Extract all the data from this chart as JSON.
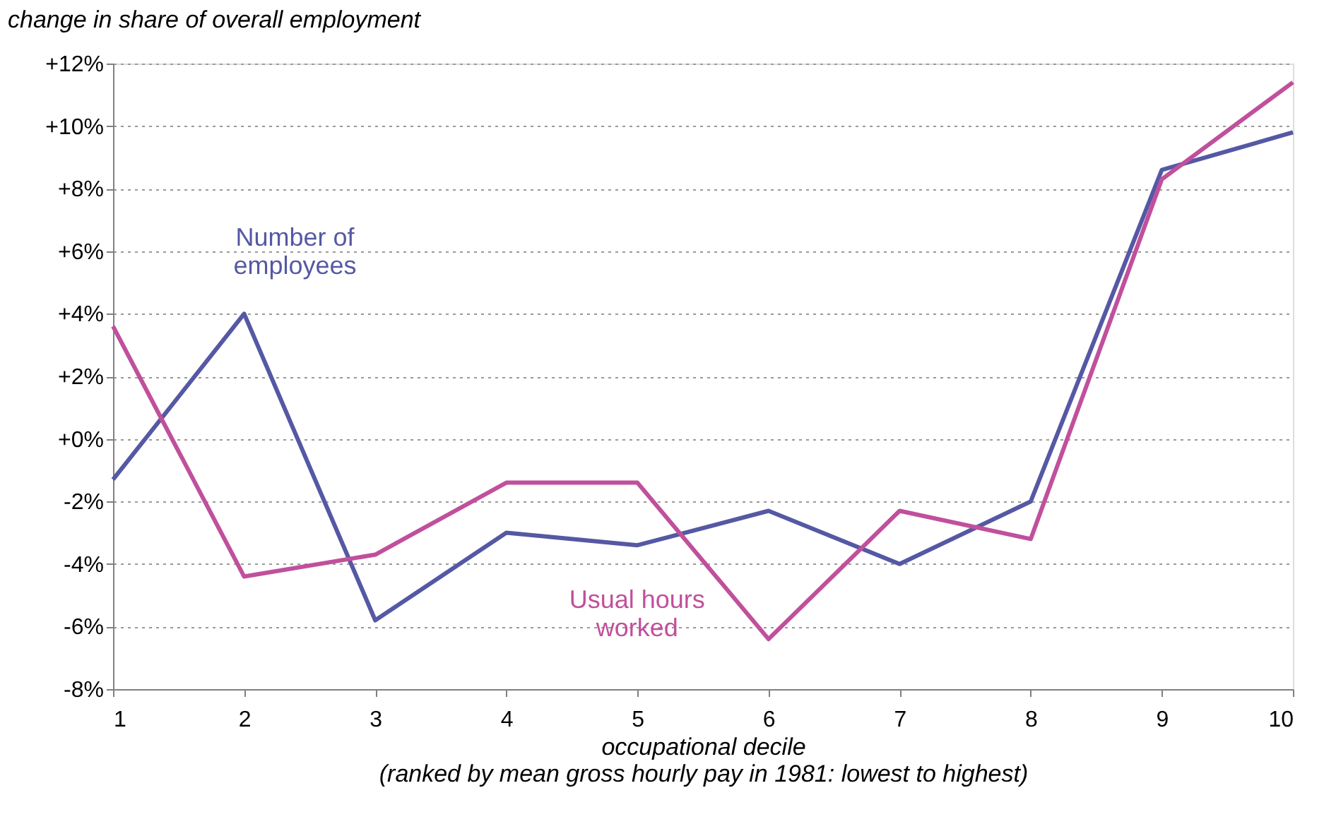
{
  "chart_data": {
    "type": "line",
    "ylabel": "change in share of overall employment",
    "xlabel": "occupational decile\n(ranked by mean gross hourly pay in 1981: lowest to highest)",
    "x": [
      1,
      2,
      3,
      4,
      5,
      6,
      7,
      8,
      9,
      10
    ],
    "xlim": [
      1,
      10
    ],
    "xticks": [
      1,
      2,
      3,
      4,
      5,
      6,
      7,
      8,
      9,
      10
    ],
    "ylim": [
      -8,
      12
    ],
    "yticks": [
      {
        "value": -8,
        "label": "-8%"
      },
      {
        "value": -6,
        "label": "-6%"
      },
      {
        "value": -4,
        "label": "-4%"
      },
      {
        "value": -2,
        "label": "-2%"
      },
      {
        "value": 0,
        "label": "+0%"
      },
      {
        "value": 2,
        "label": "+2%"
      },
      {
        "value": 4,
        "label": "+4%"
      },
      {
        "value": 6,
        "label": "+6%"
      },
      {
        "value": 8,
        "label": "+8%"
      },
      {
        "value": 10,
        "label": "+10%"
      },
      {
        "value": 12,
        "label": "+12%"
      }
    ],
    "grid": "y",
    "legend": false,
    "marker": "none",
    "line_style": "solid",
    "series": [
      {
        "name": "Number of employees",
        "color": "#5558a3",
        "values": [
          -1.3,
          4.0,
          -5.8,
          -3.0,
          -3.4,
          -2.3,
          -4.0,
          -2.0,
          8.6,
          9.8
        ]
      },
      {
        "name": "Usual hours worked",
        "color": "#c0509c",
        "values": [
          3.6,
          -4.4,
          -3.7,
          -1.4,
          -1.4,
          -6.4,
          -2.3,
          -3.2,
          8.3,
          11.4
        ]
      }
    ]
  }
}
